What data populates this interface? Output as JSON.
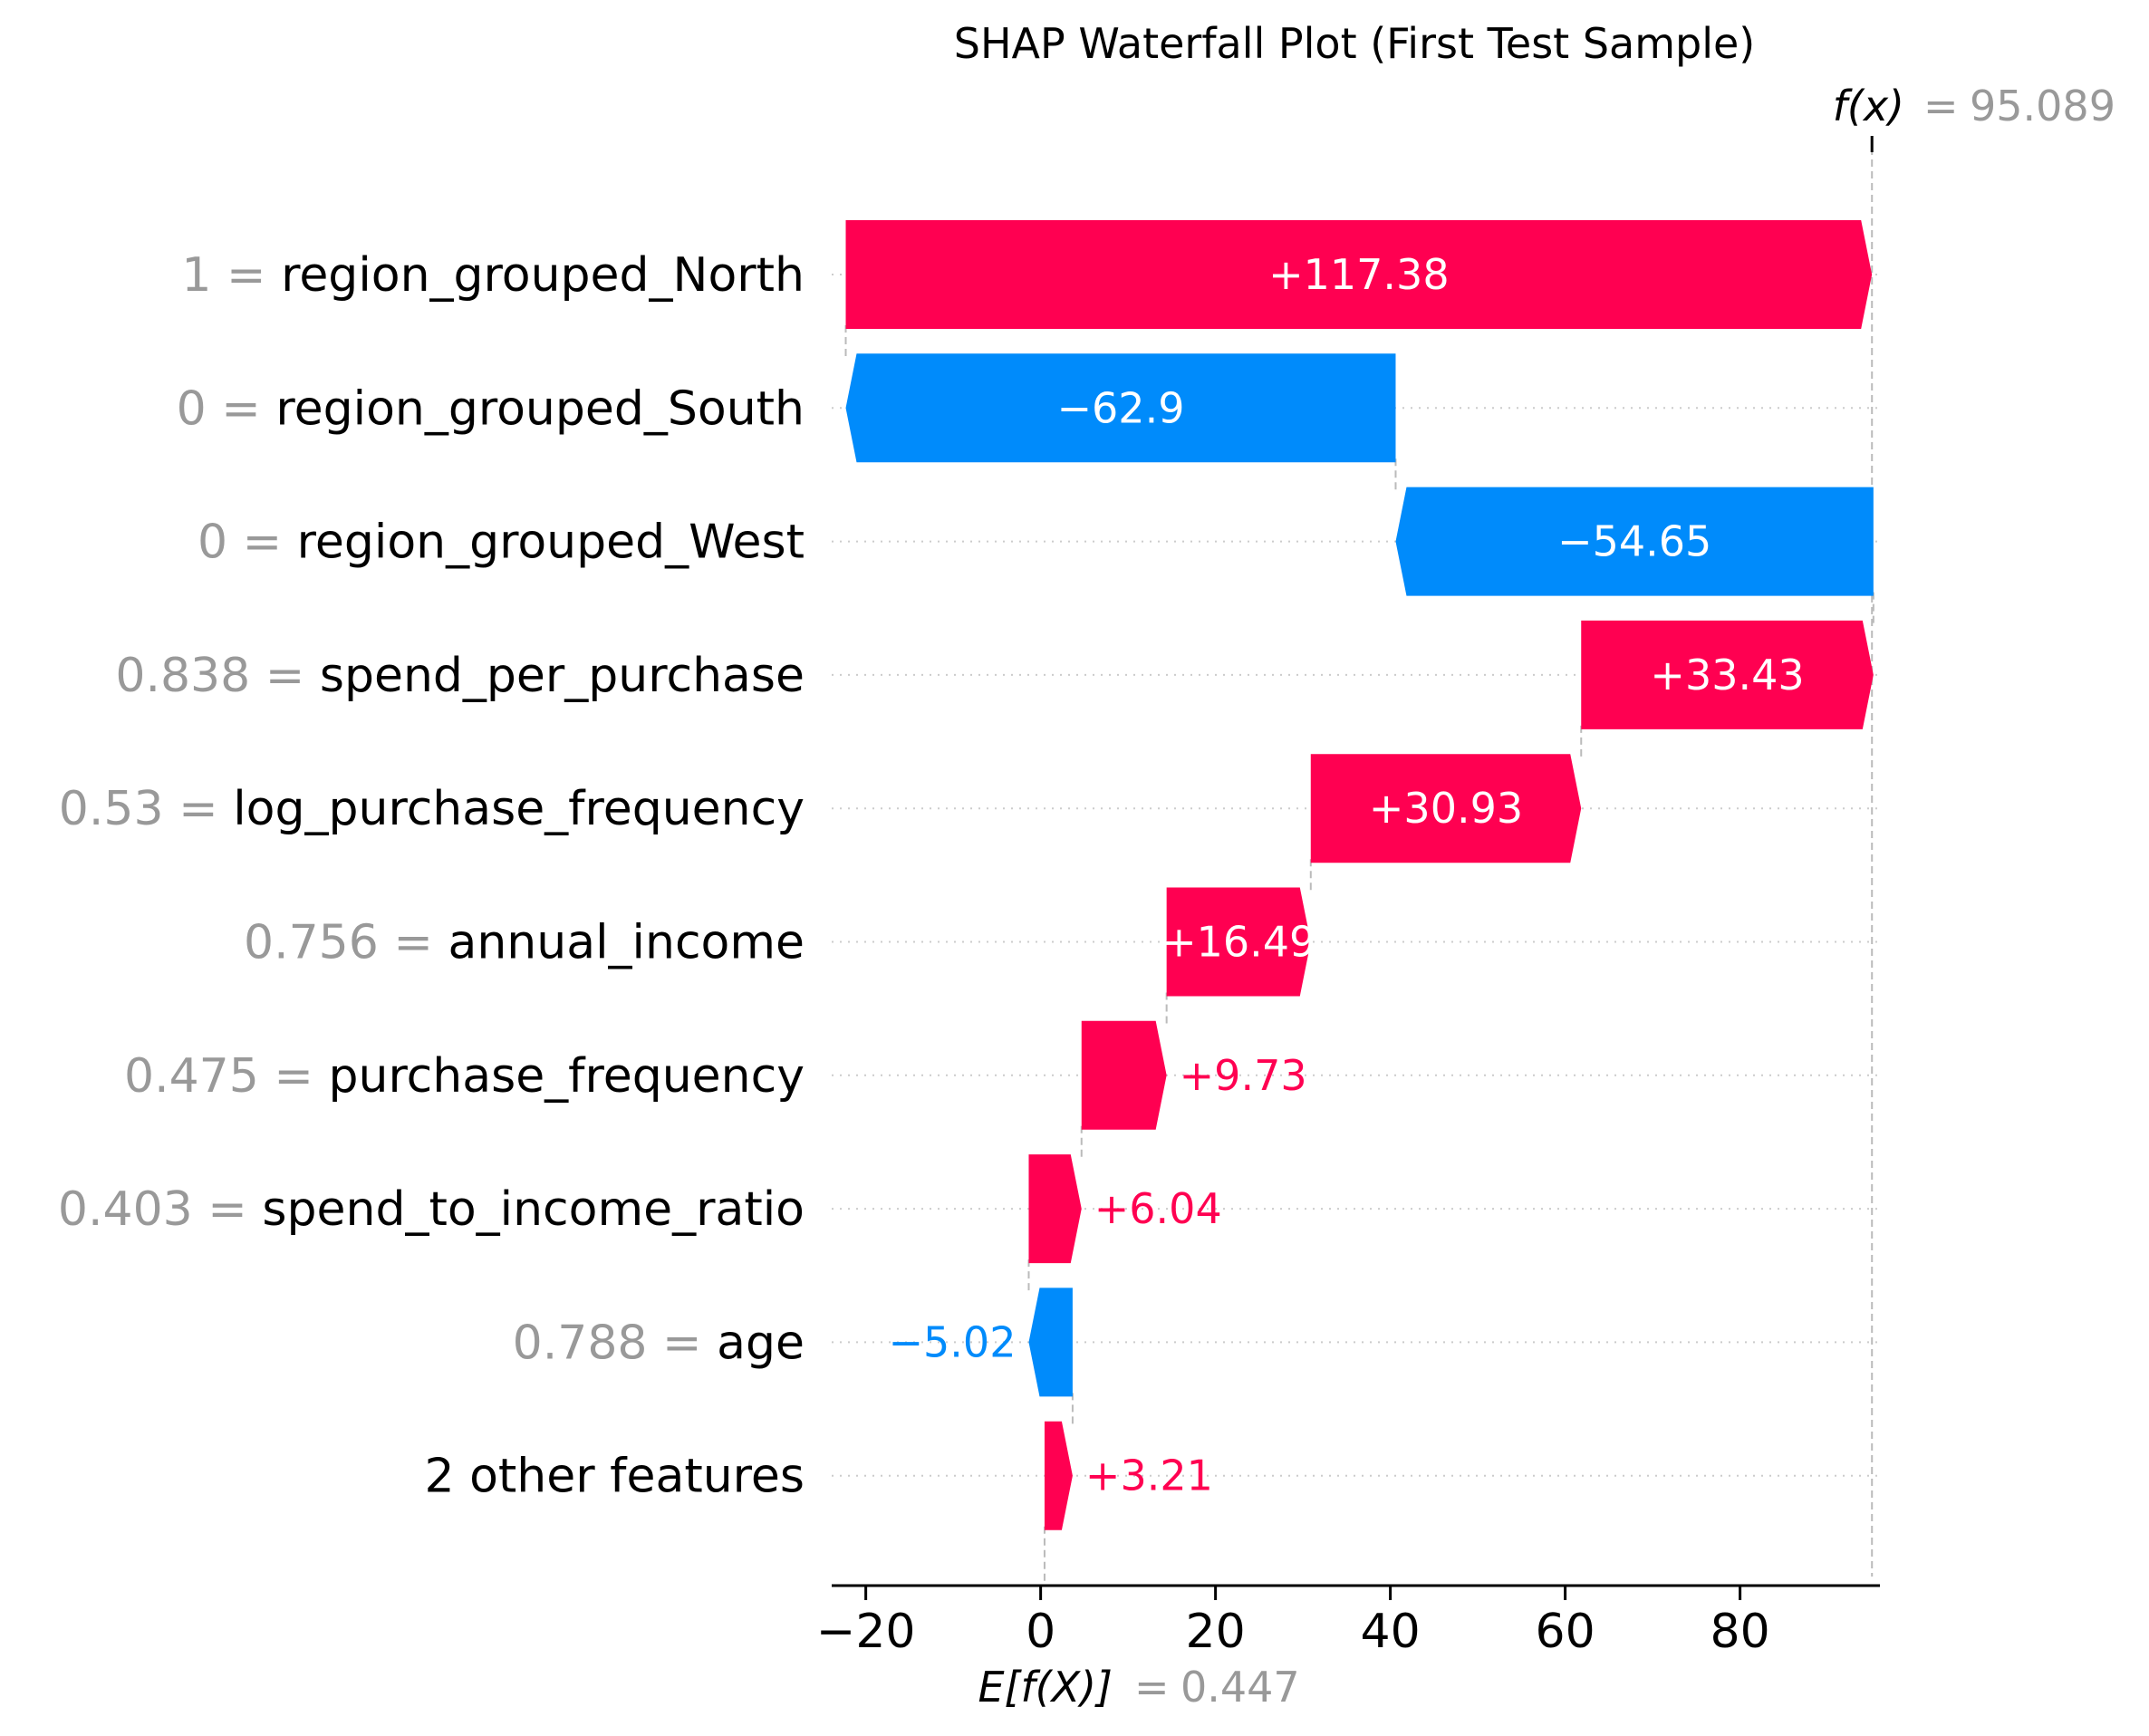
{
  "chart_data": {
    "type": "waterfall",
    "title": "SHAP Waterfall Plot (First Test Sample)",
    "fx_label": "f(x)",
    "fx_value": "95.089",
    "fx_numeric": 95.089,
    "base_label": "E[f(X)]",
    "base_value": "0.447",
    "base_numeric": 0.447,
    "xlim": [
      -23.9,
      96.0
    ],
    "xticks": [
      -20,
      0,
      20,
      40,
      60,
      80
    ],
    "xtick_labels": [
      "−20",
      "0",
      "20",
      "40",
      "60",
      "80"
    ],
    "features": [
      {
        "value": "1",
        "name": "region_grouped_North",
        "shap": 117.38,
        "label": "+117.38"
      },
      {
        "value": "0",
        "name": "region_grouped_South",
        "shap": -62.9,
        "label": "−62.9"
      },
      {
        "value": "0",
        "name": "region_grouped_West",
        "shap": -54.65,
        "label": "−54.65"
      },
      {
        "value": "0.838",
        "name": "spend_per_purchase",
        "shap": 33.43,
        "label": "+33.43"
      },
      {
        "value": "0.53",
        "name": "log_purchase_frequency",
        "shap": 30.93,
        "label": "+30.93"
      },
      {
        "value": "0.756",
        "name": "annual_income",
        "shap": 16.49,
        "label": "+16.49"
      },
      {
        "value": "0.475",
        "name": "purchase_frequency",
        "shap": 9.73,
        "label": "+9.73"
      },
      {
        "value": "0.403",
        "name": "spend_to_income_ratio",
        "shap": 6.04,
        "label": "+6.04"
      },
      {
        "value": "0.788",
        "name": "age",
        "shap": -5.02,
        "label": "−5.02"
      },
      {
        "value": "",
        "name": "2 other features",
        "shap": 3.21,
        "label": "+3.21"
      }
    ],
    "colors": {
      "positive": "#ff0051",
      "negative": "#008bfb",
      "feature_value": "#999999",
      "text": "#000000",
      "grid": "#cccccc"
    }
  }
}
